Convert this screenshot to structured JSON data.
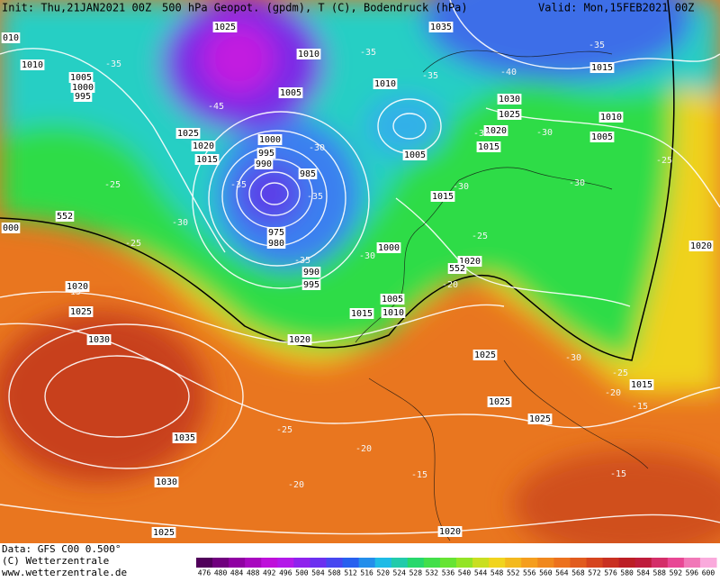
{
  "header": {
    "init": "Init: Thu,21JAN2021 00Z",
    "title": "500 hPa Geopot. (gpdm), T (C), Bodendruck (hPa)",
    "valid": "Valid: Mon,15FEB2021 00Z"
  },
  "isobar_labels": [
    "1025",
    "1035",
    "010",
    "1010",
    "1005",
    "1000",
    "995",
    "1010",
    "1005",
    "1010",
    "1030",
    "1025",
    "1020",
    "1015",
    "1015",
    "1010",
    "1005",
    "1025",
    "1020",
    "1015",
    "1000",
    "995",
    "990",
    "985",
    "975",
    "980",
    "990",
    "995",
    "1005",
    "1015",
    "1000",
    "1020",
    "1005",
    "1010",
    "1015",
    "1020",
    "1025",
    "1030",
    "1020",
    "1025",
    "1025",
    "1025",
    "1020",
    "1015",
    "1035",
    "1030",
    "1025",
    "1020",
    "000",
    "552",
    "552"
  ],
  "temperature_labels": [
    "-35",
    "-35",
    "-35",
    "-40",
    "-35",
    "-45",
    "-30",
    "-35",
    "-35",
    "-30",
    "-35",
    "-25",
    "-30",
    "-25",
    "-30",
    "-30",
    "-25",
    "-30",
    "-35",
    "-25",
    "-20",
    "-15",
    "-30",
    "-25",
    "-20",
    "-15",
    "-25",
    "-20",
    "-15",
    "-20",
    "-15"
  ],
  "footer": {
    "data": "Data: GFS C00 0.500°",
    "copyright": "(C) Wetterzentrale",
    "url": "www.wetterzentrale.de"
  },
  "colorbar": {
    "ticks": [
      476,
      480,
      484,
      488,
      492,
      496,
      500,
      504,
      508,
      512,
      516,
      520,
      524,
      528,
      532,
      536,
      540,
      544,
      548,
      552,
      556,
      560,
      564,
      568,
      572,
      576,
      580,
      584,
      588,
      592,
      596,
      600
    ]
  }
}
